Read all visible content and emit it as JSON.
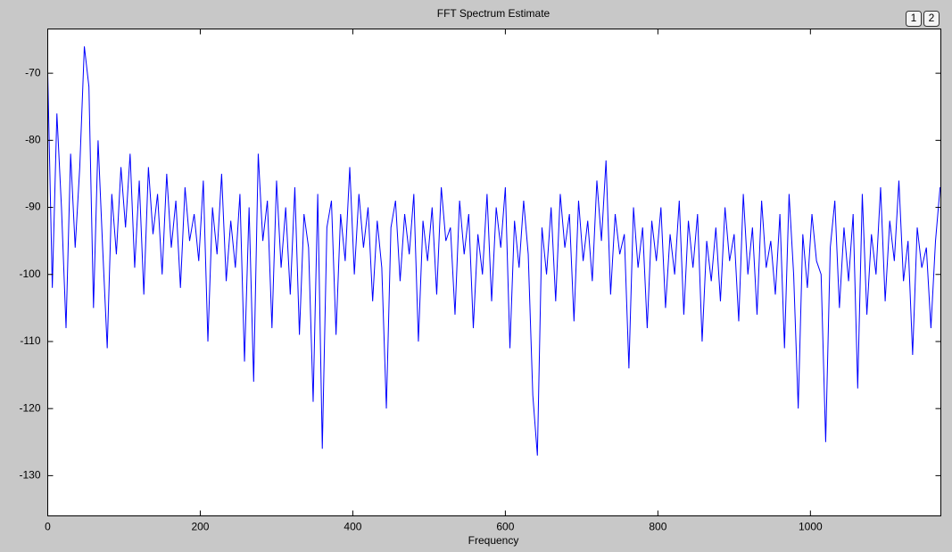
{
  "chart_data": {
    "type": "line",
    "title": "FFT Spectrum Estimate",
    "x_label": "Frequency",
    "color": "#0000ff",
    "xlim": [
      0,
      1171
    ],
    "ylim": [
      -136,
      -63.4
    ],
    "xticks": [
      0,
      200,
      400,
      600,
      800,
      1000
    ],
    "yticks": [
      -130,
      -120,
      -110,
      -100,
      -90,
      -80,
      -70
    ],
    "x": [
      0,
      6,
      12,
      18,
      24,
      30,
      36,
      42,
      48,
      54,
      60,
      66,
      72,
      78,
      84,
      90,
      96,
      102,
      108,
      114,
      120,
      126,
      132,
      138,
      144,
      150,
      156,
      162,
      168,
      174,
      180,
      186,
      192,
      198,
      204,
      210,
      216,
      222,
      228,
      234,
      240,
      246,
      252,
      258,
      264,
      270,
      276,
      282,
      288,
      294,
      300,
      306,
      312,
      318,
      324,
      330,
      336,
      342,
      348,
      354,
      360,
      366,
      372,
      378,
      384,
      390,
      396,
      402,
      408,
      414,
      420,
      426,
      432,
      438,
      444,
      450,
      456,
      462,
      468,
      474,
      480,
      486,
      492,
      498,
      504,
      510,
      516,
      522,
      528,
      534,
      540,
      546,
      552,
      558,
      564,
      570,
      576,
      582,
      588,
      594,
      600,
      606,
      612,
      618,
      624,
      630,
      636,
      642,
      648,
      654,
      660,
      666,
      672,
      678,
      684,
      690,
      696,
      702,
      708,
      714,
      720,
      726,
      732,
      738,
      744,
      750,
      756,
      762,
      768,
      774,
      780,
      786,
      792,
      798,
      804,
      810,
      816,
      822,
      828,
      834,
      840,
      846,
      852,
      858,
      864,
      870,
      876,
      882,
      888,
      894,
      900,
      906,
      912,
      918,
      924,
      930,
      936,
      942,
      948,
      954,
      960,
      966,
      972,
      978,
      984,
      990,
      996,
      1002,
      1008,
      1014,
      1020,
      1026,
      1032,
      1038,
      1044,
      1050,
      1056,
      1062,
      1068,
      1074,
      1080,
      1086,
      1092,
      1098,
      1104,
      1110,
      1116,
      1122,
      1128,
      1134,
      1140,
      1146,
      1152,
      1158,
      1164,
      1170
    ],
    "values": [
      -70,
      -102,
      -76,
      -90,
      -108,
      -82,
      -96,
      -84,
      -66,
      -72,
      -105,
      -80,
      -96,
      -111,
      -88,
      -97,
      -84,
      -93,
      -82,
      -99,
      -86,
      -103,
      -84,
      -94,
      -88,
      -100,
      -85,
      -96,
      -89,
      -102,
      -87,
      -95,
      -91,
      -98,
      -86,
      -110,
      -90,
      -97,
      -85,
      -101,
      -92,
      -99,
      -88,
      -113,
      -90,
      -116,
      -82,
      -95,
      -89,
      -108,
      -86,
      -99,
      -90,
      -103,
      -87,
      -109,
      -91,
      -96,
      -119,
      -88,
      -126,
      -93,
      -89,
      -109,
      -91,
      -98,
      -84,
      -100,
      -88,
      -96,
      -90,
      -104,
      -92,
      -99,
      -120,
      -93,
      -89,
      -101,
      -91,
      -97,
      -88,
      -110,
      -92,
      -98,
      -90,
      -103,
      -87,
      -95,
      -93,
      -106,
      -89,
      -97,
      -91,
      -108,
      -94,
      -100,
      -88,
      -104,
      -90,
      -96,
      -87,
      -111,
      -92,
      -99,
      -89,
      -97,
      -118,
      -127,
      -93,
      -100,
      -90,
      -104,
      -88,
      -96,
      -91,
      -107,
      -89,
      -98,
      -92,
      -101,
      -86,
      -95,
      -83,
      -103,
      -91,
      -97,
      -94,
      -114,
      -90,
      -99,
      -93,
      -108,
      -92,
      -98,
      -90,
      -105,
      -94,
      -100,
      -89,
      -106,
      -92,
      -99,
      -91,
      -110,
      -95,
      -101,
      -93,
      -104,
      -90,
      -98,
      -94,
      -107,
      -88,
      -100,
      -93,
      -106,
      -89,
      -99,
      -95,
      -103,
      -91,
      -111,
      -88,
      -100,
      -120,
      -94,
      -102,
      -91,
      -98,
      -100,
      -125,
      -96,
      -89,
      -105,
      -93,
      -101,
      -91,
      -117,
      -88,
      -106,
      -94,
      -100,
      -87,
      -104,
      -92,
      -98,
      -86,
      -101,
      -95,
      -112,
      -93,
      -99,
      -96,
      -108,
      -95,
      -87
    ]
  },
  "page_buttons": [
    "1",
    "2"
  ]
}
